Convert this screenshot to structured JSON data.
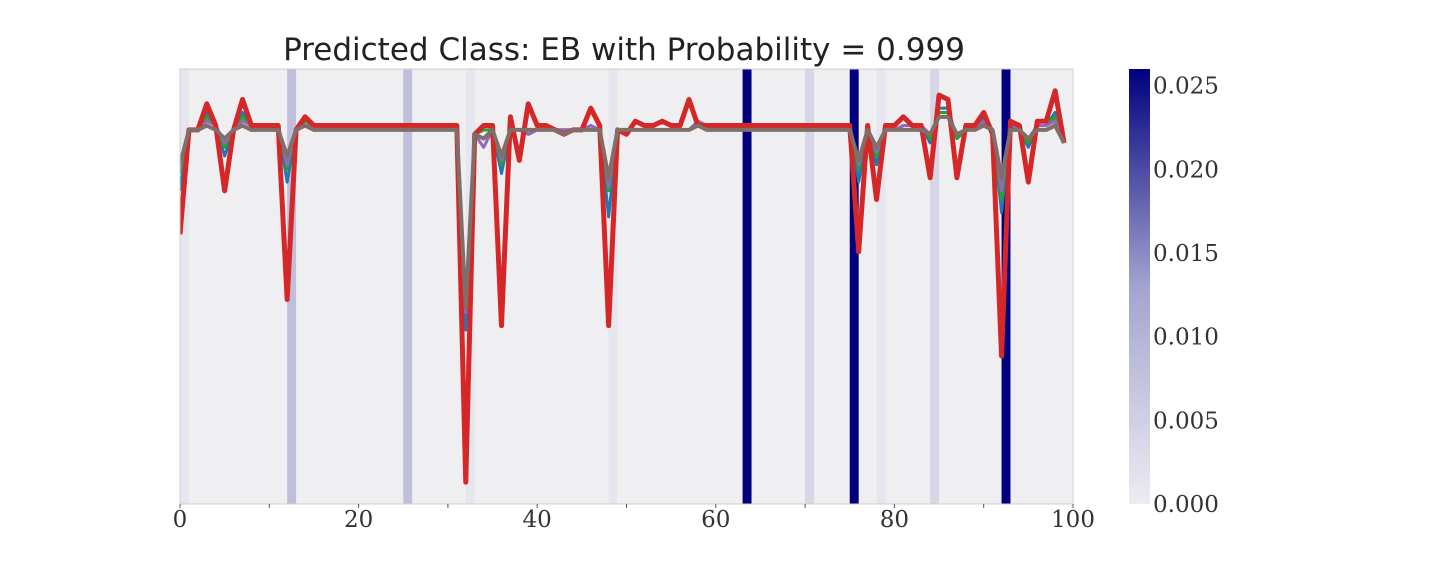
{
  "chart_data": {
    "type": "line",
    "title": "Predicted Class: EB with Probability = 0.999",
    "xlabel": "",
    "ylabel": "",
    "xlim": [
      0,
      100
    ],
    "ylim": [
      0,
      1
    ],
    "x_ticks": [
      0,
      20,
      40,
      60,
      80,
      100
    ],
    "grid": false,
    "attribution": {
      "description": "Per-timestep relevance shown as vertical shaded bands behind the series",
      "max": 0.026,
      "entries": [
        {
          "x": 0,
          "value": 0.001
        },
        {
          "x": 12,
          "value": 0.008
        },
        {
          "x": 25,
          "value": 0.008
        },
        {
          "x": 32,
          "value": 0.001
        },
        {
          "x": 48,
          "value": 0.001
        },
        {
          "x": 63,
          "value": 0.026
        },
        {
          "x": 70,
          "value": 0.004
        },
        {
          "x": 75,
          "value": 0.026
        },
        {
          "x": 78,
          "value": 0.001
        },
        {
          "x": 84,
          "value": 0.004
        },
        {
          "x": 92,
          "value": 0.026
        }
      ]
    },
    "colorbar": {
      "min": 0.0,
      "max": 0.026,
      "ticks": [
        "0.000",
        "0.005",
        "0.010",
        "0.015",
        "0.020",
        "0.025"
      ],
      "tick_values": [
        0.0,
        0.005,
        0.01,
        0.015,
        0.02,
        0.025
      ],
      "color_low": "#ececf2",
      "color_high": "#00007f"
    },
    "series": [
      {
        "color": "#1f77b4",
        "width": 3,
        "values": [
          0.72,
          0.86,
          0.86,
          0.9,
          0.87,
          0.8,
          0.86,
          0.9,
          0.87,
          0.87,
          0.87,
          0.87,
          0.74,
          0.86,
          0.88,
          0.87,
          0.87,
          0.87,
          0.87,
          0.87,
          0.87,
          0.87,
          0.87,
          0.87,
          0.87,
          0.87,
          0.87,
          0.87,
          0.87,
          0.87,
          0.87,
          0.87,
          0.4,
          0.85,
          0.86,
          0.86,
          0.76,
          0.86,
          0.86,
          0.85,
          0.86,
          0.86,
          0.86,
          0.86,
          0.86,
          0.86,
          0.87,
          0.86,
          0.66,
          0.86,
          0.86,
          0.86,
          0.86,
          0.86,
          0.86,
          0.86,
          0.86,
          0.86,
          0.88,
          0.87,
          0.87,
          0.87,
          0.87,
          0.87,
          0.87,
          0.87,
          0.87,
          0.87,
          0.87,
          0.87,
          0.87,
          0.87,
          0.87,
          0.87,
          0.87,
          0.87,
          0.74,
          0.86,
          0.78,
          0.86,
          0.86,
          0.87,
          0.87,
          0.87,
          0.83,
          0.91,
          0.91,
          0.84,
          0.86,
          0.86,
          0.89,
          0.86,
          0.67,
          0.87,
          0.86,
          0.82,
          0.87,
          0.87,
          0.9,
          0.83
        ]
      },
      {
        "color": "#2ca02c",
        "width": 3,
        "values": [
          0.76,
          0.86,
          0.86,
          0.89,
          0.87,
          0.82,
          0.86,
          0.89,
          0.87,
          0.87,
          0.87,
          0.87,
          0.77,
          0.86,
          0.88,
          0.87,
          0.87,
          0.87,
          0.87,
          0.87,
          0.87,
          0.87,
          0.87,
          0.87,
          0.87,
          0.87,
          0.87,
          0.87,
          0.87,
          0.87,
          0.87,
          0.87,
          0.46,
          0.85,
          0.86,
          0.86,
          0.78,
          0.86,
          0.86,
          0.85,
          0.86,
          0.86,
          0.86,
          0.86,
          0.86,
          0.86,
          0.87,
          0.86,
          0.72,
          0.86,
          0.86,
          0.86,
          0.86,
          0.86,
          0.86,
          0.86,
          0.86,
          0.86,
          0.88,
          0.87,
          0.87,
          0.87,
          0.87,
          0.87,
          0.87,
          0.87,
          0.87,
          0.87,
          0.87,
          0.87,
          0.87,
          0.87,
          0.87,
          0.87,
          0.87,
          0.87,
          0.77,
          0.86,
          0.8,
          0.86,
          0.86,
          0.87,
          0.87,
          0.87,
          0.84,
          0.9,
          0.9,
          0.84,
          0.86,
          0.86,
          0.88,
          0.86,
          0.7,
          0.87,
          0.86,
          0.83,
          0.87,
          0.87,
          0.89,
          0.83
        ]
      },
      {
        "color": "#9467bd",
        "width": 3,
        "values": [
          0.77,
          0.86,
          0.86,
          0.88,
          0.87,
          0.83,
          0.86,
          0.88,
          0.87,
          0.87,
          0.87,
          0.87,
          0.78,
          0.86,
          0.87,
          0.87,
          0.87,
          0.87,
          0.87,
          0.87,
          0.87,
          0.87,
          0.87,
          0.87,
          0.87,
          0.87,
          0.87,
          0.87,
          0.87,
          0.87,
          0.87,
          0.87,
          0.44,
          0.85,
          0.82,
          0.86,
          0.79,
          0.86,
          0.86,
          0.85,
          0.86,
          0.86,
          0.86,
          0.86,
          0.86,
          0.86,
          0.87,
          0.86,
          0.73,
          0.86,
          0.86,
          0.86,
          0.86,
          0.86,
          0.86,
          0.86,
          0.86,
          0.86,
          0.88,
          0.87,
          0.87,
          0.87,
          0.87,
          0.87,
          0.87,
          0.87,
          0.87,
          0.87,
          0.87,
          0.87,
          0.87,
          0.87,
          0.87,
          0.87,
          0.87,
          0.87,
          0.78,
          0.86,
          0.81,
          0.86,
          0.86,
          0.87,
          0.87,
          0.87,
          0.85,
          0.89,
          0.89,
          0.85,
          0.86,
          0.86,
          0.88,
          0.86,
          0.72,
          0.87,
          0.86,
          0.84,
          0.87,
          0.87,
          0.88,
          0.83
        ]
      },
      {
        "color": "#d62728",
        "width": 5,
        "values": [
          0.62,
          0.86,
          0.86,
          0.92,
          0.87,
          0.72,
          0.86,
          0.93,
          0.87,
          0.87,
          0.87,
          0.87,
          0.47,
          0.86,
          0.89,
          0.87,
          0.87,
          0.87,
          0.87,
          0.87,
          0.87,
          0.87,
          0.87,
          0.87,
          0.87,
          0.87,
          0.87,
          0.87,
          0.87,
          0.87,
          0.87,
          0.87,
          0.05,
          0.85,
          0.87,
          0.87,
          0.41,
          0.89,
          0.79,
          0.92,
          0.87,
          0.87,
          0.86,
          0.85,
          0.86,
          0.86,
          0.91,
          0.87,
          0.41,
          0.86,
          0.85,
          0.88,
          0.87,
          0.87,
          0.88,
          0.87,
          0.87,
          0.93,
          0.87,
          0.87,
          0.87,
          0.87,
          0.87,
          0.87,
          0.87,
          0.87,
          0.87,
          0.87,
          0.87,
          0.87,
          0.87,
          0.87,
          0.87,
          0.87,
          0.87,
          0.87,
          0.58,
          0.87,
          0.7,
          0.87,
          0.87,
          0.89,
          0.87,
          0.87,
          0.75,
          0.94,
          0.93,
          0.75,
          0.87,
          0.87,
          0.9,
          0.85,
          0.34,
          0.88,
          0.87,
          0.74,
          0.88,
          0.88,
          0.95,
          0.83
        ]
      },
      {
        "color": "#7f6f68",
        "width": 4,
        "values": [
          0.78,
          0.86,
          0.86,
          0.87,
          0.86,
          0.84,
          0.86,
          0.87,
          0.86,
          0.86,
          0.86,
          0.86,
          0.8,
          0.86,
          0.87,
          0.86,
          0.86,
          0.86,
          0.86,
          0.86,
          0.86,
          0.86,
          0.86,
          0.86,
          0.86,
          0.86,
          0.86,
          0.86,
          0.86,
          0.86,
          0.86,
          0.86,
          0.45,
          0.85,
          0.84,
          0.86,
          0.8,
          0.86,
          0.86,
          0.86,
          0.86,
          0.86,
          0.86,
          0.85,
          0.86,
          0.86,
          0.86,
          0.86,
          0.75,
          0.86,
          0.86,
          0.86,
          0.86,
          0.86,
          0.86,
          0.86,
          0.86,
          0.86,
          0.87,
          0.86,
          0.86,
          0.86,
          0.86,
          0.86,
          0.86,
          0.86,
          0.86,
          0.86,
          0.86,
          0.86,
          0.86,
          0.86,
          0.86,
          0.86,
          0.86,
          0.86,
          0.79,
          0.86,
          0.82,
          0.86,
          0.86,
          0.86,
          0.86,
          0.86,
          0.85,
          0.89,
          0.89,
          0.85,
          0.86,
          0.86,
          0.87,
          0.86,
          0.75,
          0.86,
          0.86,
          0.84,
          0.86,
          0.86,
          0.87,
          0.83
        ]
      }
    ]
  }
}
